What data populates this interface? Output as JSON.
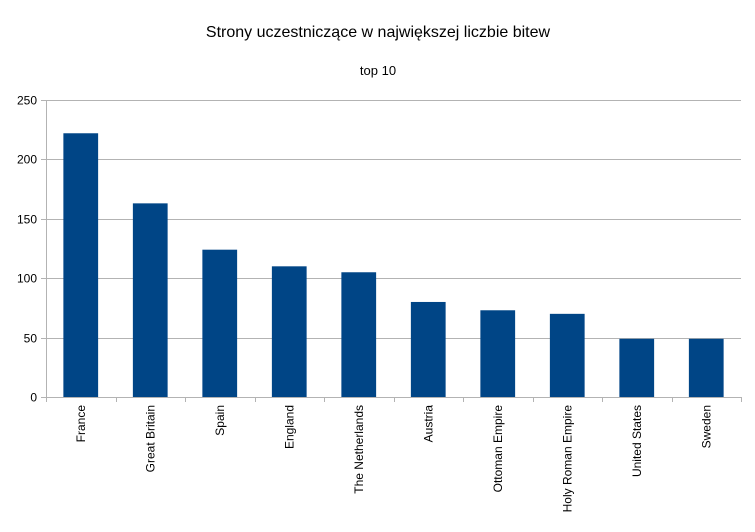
{
  "chart_data": {
    "type": "bar",
    "title": "Strony uczestniczące w największej liczbie bitew",
    "subtitle": "top 10",
    "xlabel": "",
    "ylabel": "",
    "categories": [
      "France",
      "Great Britain",
      "Spain",
      "England",
      "The Netherlands",
      "Austria",
      "Ottoman Empire",
      "Holy Roman Empire",
      "United States",
      "Sweden"
    ],
    "values": [
      222,
      163,
      124,
      110,
      105,
      80,
      73,
      70,
      49,
      49
    ],
    "ylim": [
      0,
      250
    ],
    "yticks": [
      0,
      50,
      100,
      150,
      200,
      250
    ],
    "grid": true,
    "legend": "none",
    "bar_color": "#004586"
  }
}
